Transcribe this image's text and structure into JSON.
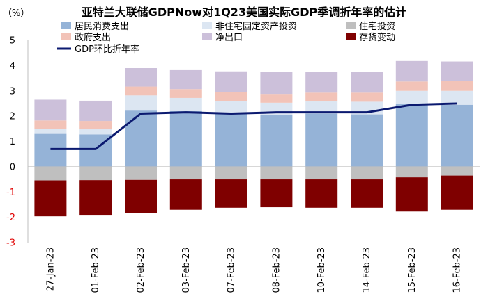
{
  "page": {
    "title": "亚特兰大联储GDPNow对1Q23美国实际GDP季调折年率的估计",
    "unit_label": "（%）"
  },
  "chart_data": {
    "type": "bar",
    "stacked": true,
    "title": "亚特兰大联储GDPNow对1Q23美国实际GDP季调折年率的估计",
    "ylabel": "（%）",
    "ylim": [
      -3,
      5
    ],
    "yticks": [
      5,
      4,
      3,
      2,
      1,
      0,
      -1,
      -2,
      -3
    ],
    "categories": [
      "27-Jan-23",
      "01-Feb-23",
      "02-Feb-23",
      "03-Feb-23",
      "07-Feb-23",
      "08-Feb-23",
      "10-Feb-23",
      "14-Feb-23",
      "15-Feb-23",
      "16-Feb-23"
    ],
    "series": [
      {
        "name": "居民消费支出",
        "color": "#95b3d7",
        "values": [
          1.3,
          1.28,
          2.22,
          2.2,
          2.12,
          2.05,
          2.1,
          2.07,
          2.47,
          2.45
        ]
      },
      {
        "name": "非住宅固定资产投资",
        "color": "#dce6f2",
        "values": [
          0.2,
          0.2,
          0.6,
          0.52,
          0.48,
          0.48,
          0.48,
          0.5,
          0.53,
          0.55
        ]
      },
      {
        "name": "政府支出",
        "color": "#f2c3b8",
        "values": [
          0.33,
          0.33,
          0.35,
          0.35,
          0.35,
          0.35,
          0.35,
          0.36,
          0.37,
          0.38
        ]
      },
      {
        "name": "净出口",
        "color": "#ccc0da",
        "values": [
          0.82,
          0.8,
          0.73,
          0.75,
          0.82,
          0.86,
          0.83,
          0.83,
          0.81,
          0.78
        ]
      },
      {
        "name": "住宅投资",
        "color": "#bfbfbf",
        "values": [
          -0.54,
          -0.53,
          -0.52,
          -0.5,
          -0.5,
          -0.5,
          -0.5,
          -0.5,
          -0.42,
          -0.35
        ]
      },
      {
        "name": "存货变动",
        "color": "#7f0000",
        "values": [
          -1.42,
          -1.4,
          -1.3,
          -1.2,
          -1.12,
          -1.1,
          -1.12,
          -1.12,
          -1.35,
          -1.35
        ]
      }
    ],
    "line": {
      "name": "GDP环比折年率",
      "color": "#0b1a70",
      "values": [
        0.7,
        0.7,
        2.1,
        2.15,
        2.1,
        2.15,
        2.15,
        2.15,
        2.45,
        2.5
      ]
    },
    "legend": {
      "position": "top",
      "order": [
        "居民消费支出",
        "非住宅固定资产投资",
        "住宅投资",
        "政府支出",
        "净出口",
        "存货变动",
        "GDP环比折年率"
      ]
    }
  }
}
